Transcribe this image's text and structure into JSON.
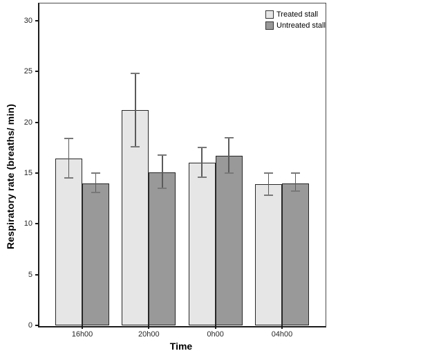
{
  "chart_data": {
    "type": "bar",
    "title": "",
    "xlabel": "Time",
    "ylabel": "Respiratory rate (breaths/ min)",
    "categories": [
      "16h00",
      "20h00",
      "0h00",
      "04h00"
    ],
    "series": [
      {
        "name": "Treated stall",
        "color": "#e6e6e6",
        "values": [
          16.4,
          21.2,
          16.0,
          13.9
        ],
        "error_upper": [
          18.4,
          24.8,
          17.5,
          15.0
        ],
        "error_lower": [
          14.5,
          17.6,
          14.6,
          12.8
        ]
      },
      {
        "name": "Untreated stall",
        "color": "#999999",
        "values": [
          14.0,
          15.1,
          16.7,
          14.0
        ],
        "error_upper": [
          15.0,
          16.8,
          18.5,
          15.0
        ],
        "error_lower": [
          13.1,
          13.5,
          15.0,
          13.2
        ]
      }
    ],
    "ylim": [
      0,
      31.7
    ],
    "yticks": [
      0,
      5,
      10,
      15,
      20,
      25,
      30
    ],
    "legend_position": "top-right-inside",
    "grid": false,
    "error_bars": true
  },
  "colors": {
    "background": "#ffffff",
    "bar_border": "#262626",
    "error_bar_line": "#5a5a5a",
    "error_bar_cap": "#787878",
    "axis_frame": "#4a4a4a",
    "axis_line": "#1a1a1a",
    "tick_label": "#262626",
    "axis_title": "#000000",
    "legend_swatch_border": "#333333"
  }
}
